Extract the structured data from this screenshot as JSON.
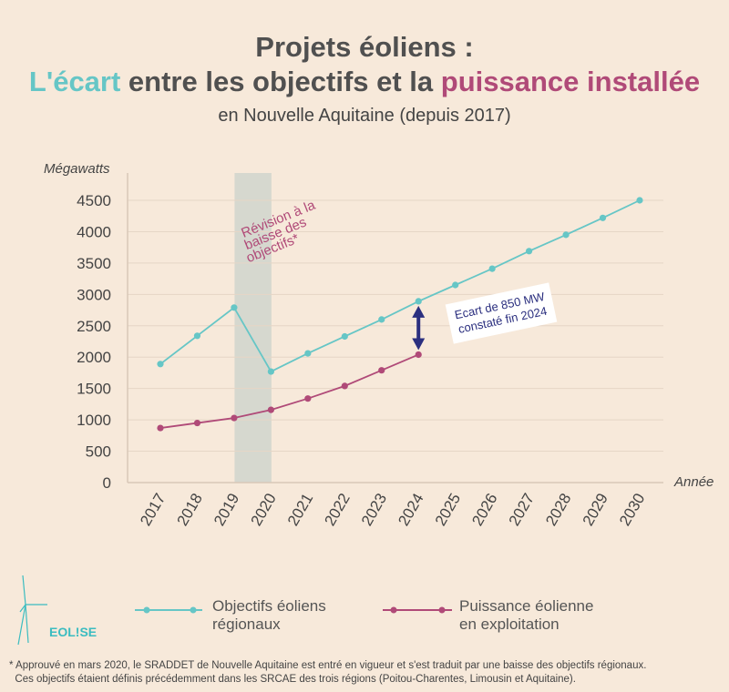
{
  "title": {
    "line1": "Projets éoliens :",
    "line2_part1": "L'écart",
    "line2_part2": " entre les objectifs et la ",
    "line2_part3": "puissance installée",
    "subtitle": "en Nouvelle Aquitaine (depuis 2017)"
  },
  "colors": {
    "objectifs": "#66c6c6",
    "puissance": "#b04a78",
    "arrow": "#2b2f7f",
    "band": "#d6d8cf",
    "background": "#f7e9da"
  },
  "chart_data": {
    "type": "line",
    "ylabel": "Mégawatts",
    "xlabel": "Année",
    "ylim": [
      0,
      4500
    ],
    "yticks": [
      0,
      500,
      1000,
      1500,
      2000,
      2500,
      3000,
      3500,
      4000,
      4500
    ],
    "grid": true,
    "x": [
      "2017",
      "2018",
      "2019",
      "2020",
      "2021",
      "2022",
      "2023",
      "2024",
      "2025",
      "2026",
      "2027",
      "2028",
      "2029",
      "2030"
    ],
    "series": [
      {
        "name": "Objectifs éoliens régionaux",
        "values": [
          1890,
          2340,
          2790,
          1770,
          2060,
          2330,
          2600,
          2890,
          3150,
          3410,
          3690,
          3950,
          4220,
          4500
        ]
      },
      {
        "name": "Puissance éolienne en exploitation",
        "values": [
          870,
          950,
          1030,
          1160,
          1340,
          1540,
          1790,
          2040,
          null,
          null,
          null,
          null,
          null,
          null
        ]
      }
    ],
    "highlight_band": {
      "from": "2019",
      "to": "2020",
      "label": [
        "Révision à la",
        "baisse des",
        "objectifs*"
      ]
    },
    "annotation": {
      "year": "2024",
      "lines": [
        "Ecart de 850 MW",
        "constaté fin 2024"
      ]
    }
  },
  "legend": {
    "objectifs": [
      "Objectifs éoliens",
      "régionaux"
    ],
    "puissance": [
      "Puissance éolienne",
      "en exploitation"
    ]
  },
  "logo": {
    "text": "EOL!SE"
  },
  "footnote": [
    "* Approuvé en mars 2020, le SRADDET de Nouvelle Aquitaine est entré en vigueur et s'est traduit par une baisse des objectifs régionaux.",
    "  Ces objectifs étaient définis précédemment dans les SRCAE des trois régions (Poitou-Charentes, Limousin et Aquitaine)."
  ]
}
